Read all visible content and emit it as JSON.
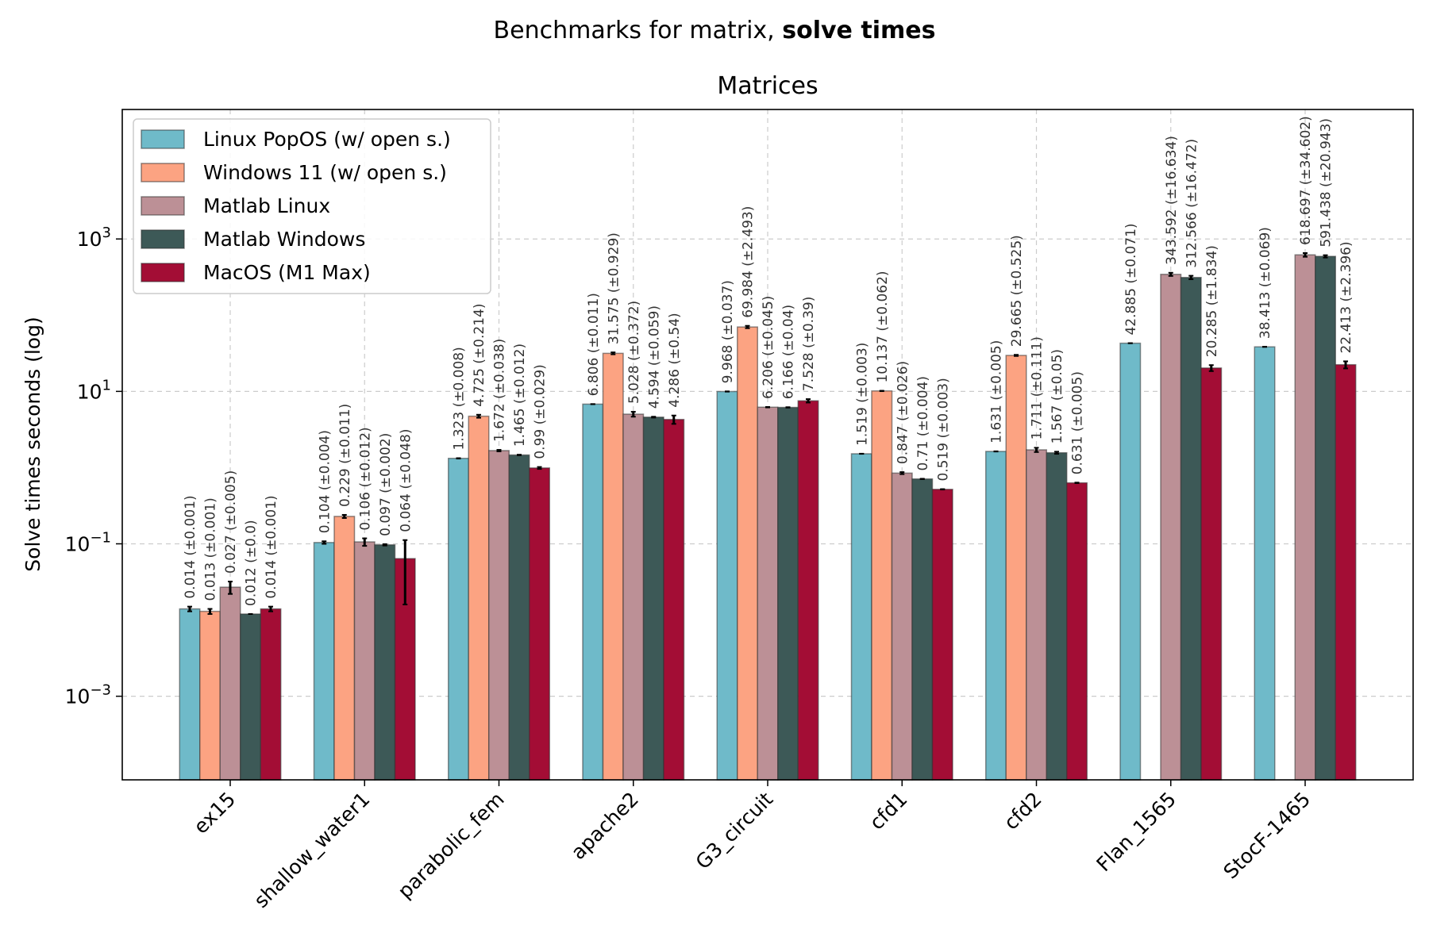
{
  "suptitle": {
    "normal": "Benchmarks for matrix, ",
    "bold": "solve times"
  },
  "chart_data": {
    "type": "bar",
    "title": "Matrices",
    "xlabel": "",
    "ylabel": "Solve times seconds (log)",
    "yscale": "log",
    "ylim": [
      8e-05,
      50000
    ],
    "yticks": [
      {
        "value": 0.001,
        "base": "10",
        "exp": "−3"
      },
      {
        "value": 0.1,
        "base": "10",
        "exp": "−1"
      },
      {
        "value": 10,
        "base": "10",
        "exp": "1"
      },
      {
        "value": 1000,
        "base": "10",
        "exp": "3"
      }
    ],
    "grid": true,
    "legend_position": "top-left",
    "categories": [
      "ex15",
      "shallow_water1",
      "parabolic_fem",
      "apache2",
      "G3_circuit",
      "cfd1",
      "cfd2",
      "Flan_1565",
      "StocF-1465"
    ],
    "series": [
      {
        "name": "Linux PopOS (w/ open s.)",
        "color": "#6fbac9",
        "values": [
          0.014,
          0.104,
          1.323,
          6.806,
          9.968,
          1.519,
          1.631,
          42.885,
          38.413
        ],
        "errors": [
          0.001,
          0.004,
          0.008,
          0.011,
          0.037,
          0.003,
          0.005,
          0.071,
          0.069
        ],
        "labels": [
          "0.014 (±0.001)",
          "0.104 (±0.004)",
          "1.323 (±0.008)",
          "6.806 (±0.011)",
          "9.968 (±0.037)",
          "1.519 (±0.003)",
          "1.631 (±0.005)",
          "42.885 (±0.071)",
          "38.413 (±0.069)"
        ]
      },
      {
        "name": "Windows 11 (w/ open s.)",
        "color": "#fca382",
        "values": [
          0.013,
          0.229,
          4.725,
          31.575,
          69.984,
          10.137,
          29.665,
          null,
          null
        ],
        "errors": [
          0.001,
          0.011,
          0.214,
          0.929,
          2.493,
          0.062,
          0.525,
          null,
          null
        ],
        "labels": [
          "0.013 (±0.001)",
          "0.229 (±0.011)",
          "4.725 (±0.214)",
          "31.575 (±0.929)",
          "69.984 (±2.493)",
          "10.137 (±0.062)",
          "29.665 (±0.525)",
          null,
          null
        ]
      },
      {
        "name": "Matlab Linux",
        "color": "#bc9096",
        "values": [
          0.027,
          0.106,
          1.672,
          5.028,
          6.206,
          0.847,
          1.711,
          343.592,
          618.697
        ],
        "errors": [
          0.005,
          0.012,
          0.038,
          0.372,
          0.045,
          0.026,
          0.111,
          16.634,
          34.602
        ],
        "labels": [
          "0.027 (±0.005)",
          "0.106 (±0.012)",
          "1.672 (±0.038)",
          "5.028 (±0.372)",
          "6.206 (±0.045)",
          "0.847 (±0.026)",
          "1.711 (±0.111)",
          "343.592 (±16.634)",
          "618.697 (±34.602)"
        ]
      },
      {
        "name": "Matlab Windows",
        "color": "#3d5957",
        "values": [
          0.012,
          0.097,
          1.465,
          4.594,
          6.166,
          0.71,
          1.567,
          312.566,
          591.438
        ],
        "errors": [
          0.0,
          0.002,
          0.012,
          0.059,
          0.04,
          0.004,
          0.05,
          16.472,
          20.943
        ],
        "labels": [
          "0.012 (±0.0)",
          "0.097 (±0.002)",
          "1.465 (±0.012)",
          "4.594 (±0.059)",
          "6.166 (±0.04)",
          "0.71 (±0.004)",
          "1.567 (±0.05)",
          "312.566 (±16.472)",
          "591.438 (±20.943)"
        ]
      },
      {
        "name": "MacOS (M1 Max)",
        "color": "#a30d35",
        "values": [
          0.014,
          0.064,
          0.99,
          4.286,
          7.528,
          0.519,
          0.631,
          20.285,
          22.413
        ],
        "errors": [
          0.001,
          0.048,
          0.029,
          0.54,
          0.39,
          0.003,
          0.005,
          1.834,
          2.396
        ],
        "labels": [
          "0.014 (±0.001)",
          "0.064 (±0.048)",
          "0.99 (±0.029)",
          "4.286 (±0.54)",
          "7.528 (±0.39)",
          "0.519 (±0.003)",
          "0.631 (±0.005)",
          "20.285 (±1.834)",
          "22.413 (±2.396)"
        ]
      }
    ]
  }
}
